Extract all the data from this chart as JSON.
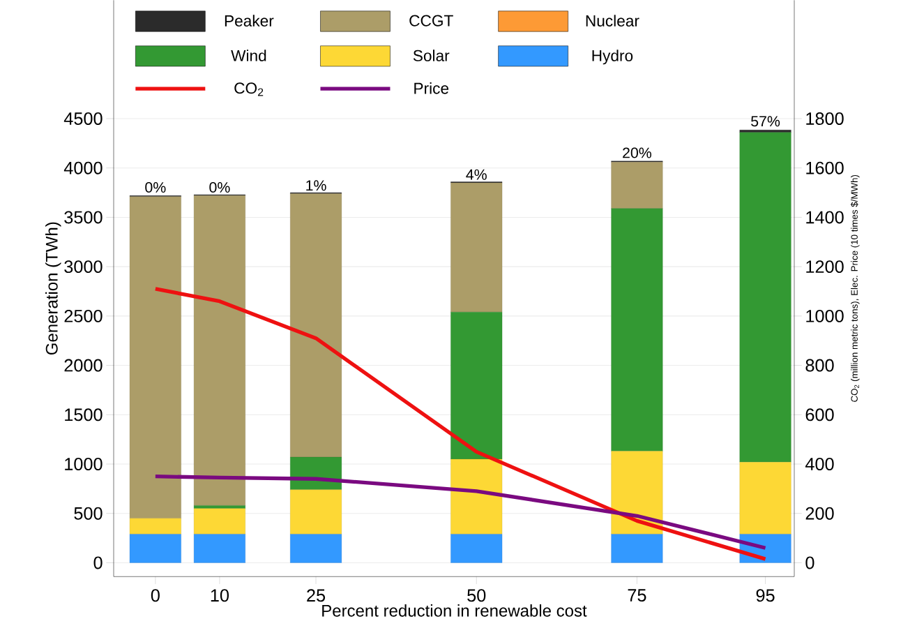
{
  "chart_data": {
    "type": "bar",
    "stacked": true,
    "xlabel": "Percent reduction in renewable cost",
    "ylabel": "Generation (TWh)",
    "y2label": "CO$_{2}$ (million metric tons), Elec. Price (10 times $/MWh)",
    "x": [
      0,
      10,
      25,
      50,
      75,
      95
    ],
    "series": [
      {
        "name": "Hydro",
        "color": "#3399ff",
        "values": [
          290,
          290,
          290,
          290,
          290,
          290
        ]
      },
      {
        "name": "Solar",
        "color": "#fdd835",
        "values": [
          160,
          260,
          450,
          760,
          840,
          730
        ]
      },
      {
        "name": "Wind",
        "color": "#339933",
        "values": [
          0,
          30,
          330,
          1490,
          2460,
          3340
        ]
      },
      {
        "name": "Nuclear",
        "color": "#fd9a35",
        "values": [
          0,
          0,
          0,
          0,
          0,
          0
        ]
      },
      {
        "name": "CCGT",
        "color": "#ac9d68",
        "values": [
          3260,
          3140,
          2670,
          1310,
          470,
          0
        ]
      },
      {
        "name": "Peaker",
        "color": "#2b2b2b",
        "values": [
          10,
          10,
          10,
          10,
          10,
          25
        ]
      },
      {
        "name": "CO$_{2}$",
        "type": "line",
        "axis": "y2",
        "color": "#ee1111",
        "values": [
          1110,
          1060,
          910,
          450,
          170,
          15
        ]
      },
      {
        "name": "Price",
        "type": "line",
        "axis": "y2",
        "color": "#7a0a80",
        "values": [
          350,
          345,
          340,
          290,
          190,
          60
        ]
      }
    ],
    "annotations": [
      {
        "text": "0%",
        "x": 0,
        "y": 3720
      },
      {
        "text": "0%",
        "x": 10,
        "y": 3720
      },
      {
        "text": "1%",
        "x": 25,
        "y": 3740
      },
      {
        "text": "4%",
        "x": 50,
        "y": 3850
      },
      {
        "text": "20%",
        "x": 75,
        "y": 4070
      },
      {
        "text": "57%",
        "x": 95,
        "y": 4390
      }
    ],
    "xlim": [
      -6.5,
      99.5
    ],
    "xticks": [
      0,
      10,
      25,
      50,
      75,
      95
    ],
    "ylim": [
      -140,
      5700
    ],
    "yticks": [
      0,
      500,
      1000,
      1500,
      2000,
      2500,
      3000,
      3500,
      4000,
      4500
    ],
    "y2lim": [
      -56,
      2280
    ],
    "y2ticks": [
      0,
      200,
      400,
      600,
      800,
      1000,
      1200,
      1400,
      1600,
      1800
    ],
    "grid": "y",
    "legend": "top"
  }
}
